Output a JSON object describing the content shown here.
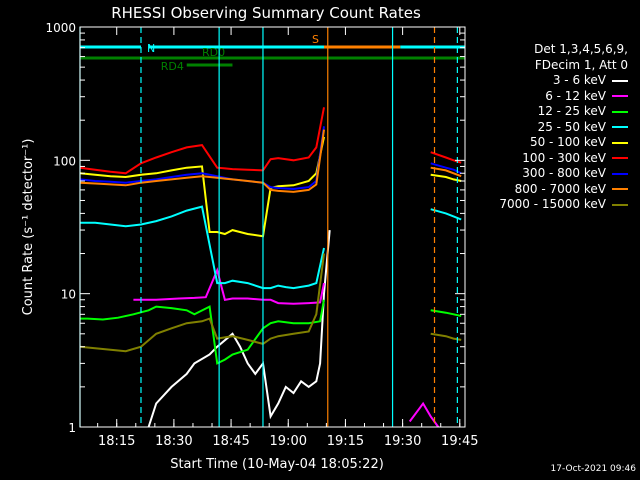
{
  "chart_data": {
    "type": "line",
    "title": "RHESSI Observing Summary Count Rates",
    "xlabel": "Start Time (10-May-04 18:05:22)",
    "ylabel": "Count Rate (s⁻¹ detector⁻¹)",
    "ylog": true,
    "ylim": [
      1,
      1000
    ],
    "xlim_minutes_after_start": [
      0,
      101
    ],
    "xticks": [
      "18:15",
      "18:30",
      "18:45",
      "19:00",
      "19:15",
      "19:30",
      "19:45"
    ],
    "yticks": [
      "1",
      "10",
      "100",
      "1000"
    ],
    "legend_header": [
      "Det 1,3,4,5,6,9,",
      "FDecim 1, Att 0"
    ],
    "series": [
      {
        "name": "3 - 6 keV",
        "color": "#ffffff",
        "x": [
          0,
          16,
          18,
          20,
          24,
          28,
          30,
          34,
          36,
          40,
          42,
          44,
          46,
          48,
          50,
          52,
          54,
          56,
          58,
          60,
          62,
          63,
          64,
          65.5,
          66
        ],
        "values": [
          null,
          null,
          1.0,
          1.5,
          2.0,
          2.5,
          3.0,
          3.5,
          4.0,
          5.0,
          4.0,
          3.0,
          2.5,
          3.0,
          1.2,
          1.5,
          2.0,
          1.8,
          2.2,
          2.0,
          2.2,
          3,
          10,
          30,
          null
        ]
      },
      {
        "name": "6 - 12 keV",
        "color": "#ff00ff",
        "x": [
          0,
          13,
          14,
          20,
          26,
          30,
          33,
          36,
          38,
          40,
          44,
          48,
          50,
          52,
          56,
          60,
          63,
          64,
          66,
          86,
          86.5,
          90,
          92,
          94,
          96,
          98,
          100
        ],
        "values": [
          null,
          null,
          9.0,
          9.0,
          9.2,
          9.3,
          9.4,
          15,
          9.0,
          9.2,
          9.2,
          9.0,
          9.0,
          8.5,
          8.4,
          8.5,
          8.6,
          12,
          null,
          null,
          1.1,
          1.5,
          1.2,
          1.0,
          null,
          null,
          null
        ]
      },
      {
        "name": "12 - 25 keV",
        "color": "#00ff00",
        "x": [
          0,
          2,
          6,
          10,
          14,
          18,
          20,
          24,
          28,
          30,
          34,
          36,
          38,
          40,
          44,
          48,
          50,
          52,
          56,
          60,
          63,
          64,
          66,
          90,
          92,
          96,
          98,
          100
        ],
        "values": [
          6.5,
          6.5,
          6.4,
          6.6,
          7.0,
          7.5,
          8.0,
          7.8,
          7.5,
          7.0,
          8.0,
          3.0,
          3.2,
          3.5,
          3.8,
          5.5,
          6.0,
          6.2,
          6.0,
          6.0,
          6.2,
          9,
          null,
          null,
          7.5,
          7.2,
          7.0,
          6.8
        ]
      },
      {
        "name": "25 - 50 keV",
        "color": "#00ffff",
        "x": [
          0,
          4,
          8,
          12,
          16,
          20,
          24,
          28,
          32,
          36,
          38,
          40,
          44,
          48,
          50,
          52,
          54,
          56,
          60,
          62,
          64,
          66,
          90,
          92,
          96,
          98,
          100
        ],
        "values": [
          34,
          34,
          33,
          32,
          33,
          35,
          38,
          42,
          45,
          12,
          12,
          12.5,
          12,
          11,
          11,
          11.5,
          11.2,
          11,
          11.5,
          12,
          22,
          null,
          null,
          43,
          40,
          38,
          36
        ]
      },
      {
        "name": "50 - 100 keV",
        "color": "#ffff00",
        "x": [
          0,
          4,
          8,
          12,
          16,
          20,
          24,
          28,
          32,
          34,
          36,
          38,
          40,
          44,
          48,
          50,
          52,
          56,
          60,
          62,
          64,
          66,
          90,
          92,
          96,
          98,
          100
        ],
        "values": [
          80,
          78,
          76,
          75,
          78,
          80,
          84,
          88,
          90,
          29,
          29,
          28,
          30,
          28,
          27,
          62,
          64,
          65,
          70,
          80,
          150,
          null,
          null,
          78,
          75,
          72,
          70
        ]
      },
      {
        "name": "100 - 300 keV",
        "color": "#ff0000",
        "x": [
          0,
          4,
          8,
          12,
          16,
          20,
          24,
          28,
          32,
          36,
          38,
          40,
          44,
          48,
          50,
          52,
          56,
          60,
          62,
          64,
          66,
          90,
          92,
          96,
          98,
          100
        ],
        "values": [
          88,
          85,
          82,
          80,
          95,
          105,
          115,
          125,
          130,
          88,
          87,
          86,
          85,
          84,
          102,
          104,
          100,
          105,
          125,
          250,
          null,
          null,
          115,
          105,
          100,
          96
        ]
      },
      {
        "name": "300 - 800 keV",
        "color": "#0000ff",
        "x": [
          0,
          4,
          8,
          12,
          16,
          20,
          24,
          28,
          32,
          36,
          38,
          40,
          44,
          48,
          50,
          52,
          56,
          60,
          62,
          64,
          66,
          90,
          92,
          96,
          98,
          100
        ],
        "values": [
          72,
          70,
          69,
          68,
          70,
          72,
          75,
          78,
          80,
          76,
          74,
          72,
          70,
          68,
          63,
          62,
          61,
          63,
          70,
          180,
          null,
          null,
          95,
          88,
          85,
          80
        ]
      },
      {
        "name": "800 - 7000 keV",
        "color": "#ff8000",
        "x": [
          0,
          4,
          8,
          12,
          16,
          20,
          24,
          28,
          32,
          36,
          38,
          40,
          44,
          48,
          50,
          52,
          56,
          60,
          62,
          64,
          66,
          90,
          92,
          96,
          98,
          100
        ],
        "values": [
          68,
          67,
          66,
          65,
          68,
          70,
          72,
          74,
          76,
          74,
          73,
          72,
          70,
          68,
          60,
          59,
          58,
          60,
          66,
          170,
          null,
          null,
          88,
          84,
          80,
          76
        ]
      },
      {
        "name": "7000 - 15000 keV",
        "color": "#808000",
        "x": [
          0,
          4,
          8,
          12,
          16,
          20,
          24,
          28,
          32,
          34,
          36,
          38,
          40,
          44,
          48,
          50,
          52,
          56,
          60,
          62,
          64,
          66,
          90,
          92,
          96,
          98,
          100
        ],
        "values": [
          4.0,
          3.9,
          3.8,
          3.7,
          4.0,
          5.0,
          5.5,
          6.0,
          6.2,
          6.5,
          4.6,
          4.7,
          4.8,
          4.5,
          4.2,
          4.6,
          4.8,
          5.0,
          5.2,
          7,
          20,
          null,
          null,
          5.0,
          4.8,
          4.6,
          4.5
        ]
      }
    ],
    "state_bars": [
      {
        "label": "N",
        "color": "#00ffff",
        "x0": 0,
        "x1": 16,
        "row": "top"
      },
      {
        "label": "",
        "color": "#00ffff",
        "x0": 18,
        "x1": 68,
        "row": "top"
      },
      {
        "label": "",
        "color": "#00ffff",
        "x0": 84,
        "x1": 101,
        "row": "top"
      },
      {
        "label": "S",
        "color": "#ff8000",
        "x0": 64,
        "x1": 84,
        "row": "top"
      },
      {
        "label": "RD0",
        "color": "#008000",
        "x0": 0,
        "x1": 101,
        "row": "mid"
      },
      {
        "label": "RD4",
        "color": "#008000",
        "x0": 28,
        "x1": 40,
        "row": "low"
      }
    ],
    "vlines": [
      {
        "x": 0,
        "color": "#00ffff",
        "dash": false
      },
      {
        "x": 16,
        "color": "#00ffff",
        "dash": true
      },
      {
        "x": 36.5,
        "color": "#00ffff",
        "dash": false
      },
      {
        "x": 48,
        "color": "#00ffff",
        "dash": false
      },
      {
        "x": 65,
        "color": "#ff8000",
        "dash": false
      },
      {
        "x": 82,
        "color": "#00ffff",
        "dash": false
      },
      {
        "x": 93,
        "color": "#ff8000",
        "dash": true
      },
      {
        "x": 99,
        "color": "#00ffff",
        "dash": true
      }
    ],
    "timestamp": "17-Oct-2021 09:46"
  }
}
